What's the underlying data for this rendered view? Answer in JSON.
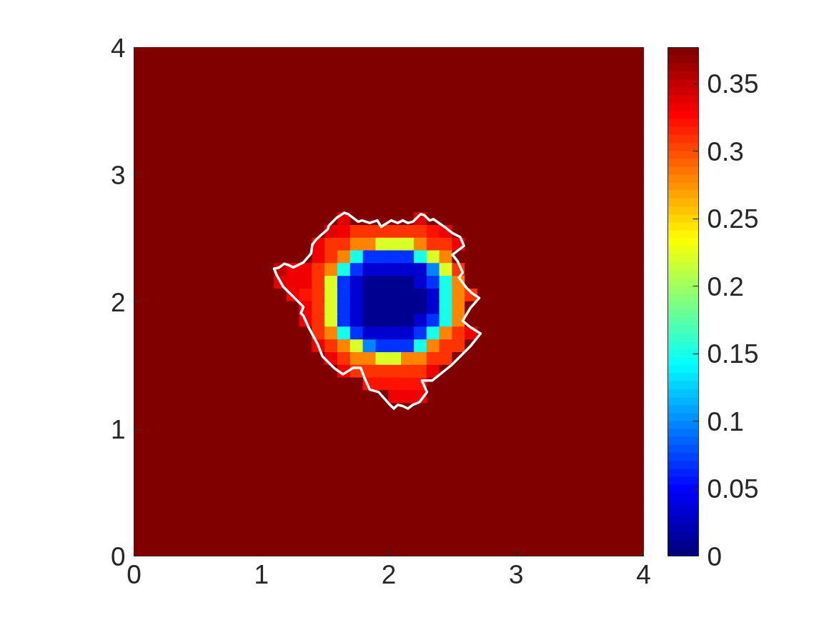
{
  "chart_data": {
    "type": "heatmap",
    "xlim": [
      0,
      4
    ],
    "ylim": [
      0,
      4
    ],
    "xticks": [
      0,
      1,
      2,
      3,
      4
    ],
    "yticks": [
      0,
      1,
      2,
      3,
      4
    ],
    "clim": [
      0,
      0.377
    ],
    "cticks": [
      0,
      0.05,
      0.1,
      0.15,
      0.2,
      0.25,
      0.3,
      0.35
    ],
    "cells": [
      [
        0.377,
        0.377,
        0.377,
        0.377,
        0.377,
        0.377,
        0.377,
        0.377,
        0.377,
        0.377,
        0.377,
        0.377,
        0.377,
        0.377,
        0.377,
        0.377,
        0.377,
        0.377,
        0.377,
        0.377,
        0.377,
        0.377,
        0.377,
        0.377,
        0.377,
        0.377,
        0.377,
        0.377,
        0.377,
        0.377,
        0.377,
        0.377,
        0.377,
        0.377,
        0.377,
        0.377,
        0.377,
        0.377,
        0.377,
        0.377
      ],
      [
        0.377,
        0.377,
        0.377,
        0.377,
        0.377,
        0.377,
        0.377,
        0.377,
        0.377,
        0.377,
        0.377,
        0.377,
        0.377,
        0.377,
        0.377,
        0.377,
        0.377,
        0.377,
        0.377,
        0.377,
        0.377,
        0.377,
        0.377,
        0.377,
        0.377,
        0.377,
        0.377,
        0.377,
        0.377,
        0.377,
        0.377,
        0.377,
        0.377,
        0.377,
        0.377,
        0.377,
        0.377,
        0.377,
        0.377,
        0.377
      ],
      [
        0.377,
        0.377,
        0.377,
        0.377,
        0.377,
        0.377,
        0.377,
        0.377,
        0.377,
        0.377,
        0.377,
        0.377,
        0.377,
        0.377,
        0.377,
        0.377,
        0.377,
        0.377,
        0.377,
        0.377,
        0.377,
        0.377,
        0.377,
        0.377,
        0.377,
        0.377,
        0.377,
        0.377,
        0.377,
        0.377,
        0.377,
        0.377,
        0.377,
        0.377,
        0.377,
        0.377,
        0.377,
        0.377,
        0.377,
        0.377
      ],
      [
        0.377,
        0.377,
        0.377,
        0.377,
        0.377,
        0.377,
        0.377,
        0.377,
        0.377,
        0.377,
        0.377,
        0.377,
        0.377,
        0.377,
        0.377,
        0.377,
        0.377,
        0.377,
        0.377,
        0.377,
        0.377,
        0.377,
        0.377,
        0.377,
        0.377,
        0.377,
        0.377,
        0.377,
        0.377,
        0.377,
        0.377,
        0.377,
        0.377,
        0.377,
        0.377,
        0.377,
        0.377,
        0.377,
        0.377,
        0.377
      ],
      [
        0.377,
        0.377,
        0.377,
        0.377,
        0.377,
        0.377,
        0.377,
        0.377,
        0.377,
        0.377,
        0.377,
        0.377,
        0.377,
        0.377,
        0.377,
        0.377,
        0.377,
        0.377,
        0.377,
        0.377,
        0.377,
        0.377,
        0.377,
        0.377,
        0.377,
        0.377,
        0.377,
        0.377,
        0.377,
        0.377,
        0.377,
        0.377,
        0.377,
        0.377,
        0.377,
        0.377,
        0.377,
        0.377,
        0.377,
        0.377
      ],
      [
        0.377,
        0.377,
        0.377,
        0.377,
        0.377,
        0.377,
        0.377,
        0.377,
        0.377,
        0.377,
        0.377,
        0.377,
        0.377,
        0.377,
        0.377,
        0.377,
        0.377,
        0.377,
        0.377,
        0.377,
        0.377,
        0.377,
        0.377,
        0.377,
        0.377,
        0.377,
        0.377,
        0.377,
        0.377,
        0.377,
        0.377,
        0.377,
        0.377,
        0.377,
        0.377,
        0.377,
        0.377,
        0.377,
        0.377,
        0.377
      ],
      [
        0.377,
        0.377,
        0.377,
        0.377,
        0.377,
        0.377,
        0.377,
        0.377,
        0.377,
        0.377,
        0.377,
        0.377,
        0.377,
        0.377,
        0.377,
        0.377,
        0.377,
        0.377,
        0.377,
        0.377,
        0.377,
        0.377,
        0.377,
        0.377,
        0.377,
        0.377,
        0.377,
        0.377,
        0.377,
        0.377,
        0.377,
        0.377,
        0.377,
        0.377,
        0.377,
        0.377,
        0.377,
        0.377,
        0.377,
        0.377
      ],
      [
        0.377,
        0.377,
        0.377,
        0.377,
        0.377,
        0.377,
        0.377,
        0.377,
        0.377,
        0.377,
        0.377,
        0.377,
        0.377,
        0.377,
        0.377,
        0.377,
        0.377,
        0.377,
        0.377,
        0.377,
        0.377,
        0.377,
        0.377,
        0.377,
        0.377,
        0.377,
        0.377,
        0.377,
        0.377,
        0.377,
        0.377,
        0.377,
        0.377,
        0.377,
        0.377,
        0.377,
        0.377,
        0.377,
        0.377,
        0.377
      ],
      [
        0.377,
        0.377,
        0.377,
        0.377,
        0.377,
        0.377,
        0.377,
        0.377,
        0.377,
        0.377,
        0.377,
        0.377,
        0.377,
        0.377,
        0.377,
        0.377,
        0.377,
        0.377,
        0.377,
        0.377,
        0.377,
        0.377,
        0.377,
        0.377,
        0.377,
        0.377,
        0.377,
        0.377,
        0.377,
        0.377,
        0.377,
        0.377,
        0.377,
        0.377,
        0.377,
        0.377,
        0.377,
        0.377,
        0.377,
        0.377
      ],
      [
        0.377,
        0.377,
        0.377,
        0.377,
        0.377,
        0.377,
        0.377,
        0.377,
        0.377,
        0.377,
        0.377,
        0.377,
        0.377,
        0.377,
        0.377,
        0.377,
        0.377,
        0.377,
        0.377,
        0.377,
        0.377,
        0.377,
        0.377,
        0.377,
        0.377,
        0.377,
        0.377,
        0.377,
        0.377,
        0.377,
        0.377,
        0.377,
        0.377,
        0.377,
        0.377,
        0.377,
        0.377,
        0.377,
        0.377,
        0.377
      ],
      [
        0.377,
        0.377,
        0.377,
        0.377,
        0.377,
        0.377,
        0.377,
        0.377,
        0.377,
        0.377,
        0.377,
        0.377,
        0.377,
        0.377,
        0.377,
        0.377,
        0.377,
        0.377,
        0.377,
        0.377,
        0.377,
        0.377,
        0.377,
        0.377,
        0.377,
        0.377,
        0.377,
        0.377,
        0.377,
        0.377,
        0.377,
        0.377,
        0.377,
        0.377,
        0.377,
        0.377,
        0.377,
        0.377,
        0.377,
        0.377
      ],
      [
        0.377,
        0.377,
        0.377,
        0.377,
        0.377,
        0.377,
        0.377,
        0.377,
        0.377,
        0.377,
        0.377,
        0.377,
        0.377,
        0.377,
        0.377,
        0.377,
        0.377,
        0.377,
        0.377,
        0.377,
        0.377,
        0.377,
        0.377,
        0.377,
        0.377,
        0.377,
        0.377,
        0.377,
        0.377,
        0.377,
        0.377,
        0.377,
        0.377,
        0.377,
        0.377,
        0.377,
        0.377,
        0.377,
        0.377,
        0.377
      ],
      [
        0.377,
        0.377,
        0.377,
        0.377,
        0.377,
        0.377,
        0.377,
        0.377,
        0.377,
        0.377,
        0.377,
        0.377,
        0.377,
        0.377,
        0.377,
        0.377,
        0.377,
        0.377,
        0.377,
        0.377,
        0.377,
        0.377,
        0.377,
        0.377,
        0.377,
        0.377,
        0.377,
        0.377,
        0.377,
        0.377,
        0.377,
        0.377,
        0.377,
        0.377,
        0.377,
        0.377,
        0.377,
        0.377,
        0.377,
        0.377
      ],
      [
        0.377,
        0.377,
        0.377,
        0.377,
        0.377,
        0.377,
        0.377,
        0.377,
        0.377,
        0.377,
        0.377,
        0.377,
        0.377,
        0.377,
        0.377,
        0.377,
        0.34,
        0.377,
        0.377,
        0.377,
        0.377,
        0.377,
        0.34,
        0.377,
        0.377,
        0.377,
        0.377,
        0.377,
        0.377,
        0.377,
        0.377,
        0.377,
        0.377,
        0.377,
        0.377,
        0.377,
        0.377,
        0.377,
        0.377,
        0.377
      ],
      [
        0.377,
        0.377,
        0.377,
        0.377,
        0.377,
        0.377,
        0.377,
        0.377,
        0.377,
        0.377,
        0.377,
        0.377,
        0.377,
        0.377,
        0.377,
        0.34,
        0.33,
        0.31,
        0.31,
        0.31,
        0.31,
        0.31,
        0.31,
        0.32,
        0.33,
        0.377,
        0.377,
        0.377,
        0.377,
        0.377,
        0.377,
        0.377,
        0.377,
        0.377,
        0.377,
        0.377,
        0.377,
        0.377,
        0.377,
        0.377
      ],
      [
        0.377,
        0.377,
        0.377,
        0.377,
        0.377,
        0.377,
        0.377,
        0.377,
        0.377,
        0.377,
        0.377,
        0.377,
        0.377,
        0.377,
        0.33,
        0.31,
        0.31,
        0.28,
        0.28,
        0.22,
        0.22,
        0.22,
        0.28,
        0.31,
        0.31,
        0.33,
        0.377,
        0.377,
        0.377,
        0.377,
        0.377,
        0.377,
        0.377,
        0.377,
        0.377,
        0.377,
        0.377,
        0.377,
        0.377,
        0.377
      ],
      [
        0.377,
        0.377,
        0.377,
        0.377,
        0.377,
        0.377,
        0.377,
        0.377,
        0.377,
        0.377,
        0.377,
        0.377,
        0.377,
        0.377,
        0.33,
        0.31,
        0.28,
        0.15,
        0.07,
        0.07,
        0.07,
        0.07,
        0.15,
        0.22,
        0.28,
        0.377,
        0.377,
        0.377,
        0.377,
        0.377,
        0.377,
        0.377,
        0.377,
        0.377,
        0.377,
        0.377,
        0.377,
        0.377,
        0.377,
        0.377
      ],
      [
        0.377,
        0.377,
        0.377,
        0.377,
        0.377,
        0.377,
        0.377,
        0.377,
        0.377,
        0.377,
        0.377,
        0.35,
        0.33,
        0.33,
        0.31,
        0.28,
        0.15,
        0.07,
        0.03,
        0.03,
        0.03,
        0.03,
        0.03,
        0.1,
        0.22,
        0.31,
        0.377,
        0.377,
        0.377,
        0.377,
        0.377,
        0.377,
        0.377,
        0.377,
        0.377,
        0.377,
        0.377,
        0.377,
        0.377,
        0.377
      ],
      [
        0.377,
        0.377,
        0.377,
        0.377,
        0.377,
        0.377,
        0.377,
        0.377,
        0.377,
        0.377,
        0.377,
        0.34,
        0.33,
        0.33,
        0.31,
        0.22,
        0.07,
        0.03,
        0.01,
        0.01,
        0.01,
        0.01,
        0.03,
        0.07,
        0.15,
        0.28,
        0.377,
        0.377,
        0.377,
        0.377,
        0.377,
        0.377,
        0.377,
        0.377,
        0.377,
        0.377,
        0.377,
        0.377,
        0.377,
        0.377
      ],
      [
        0.377,
        0.377,
        0.377,
        0.377,
        0.377,
        0.377,
        0.377,
        0.377,
        0.377,
        0.377,
        0.377,
        0.377,
        0.33,
        0.32,
        0.31,
        0.22,
        0.07,
        0.03,
        0.01,
        0.01,
        0.01,
        0.01,
        0.01,
        0.03,
        0.15,
        0.28,
        0.31,
        0.377,
        0.377,
        0.377,
        0.377,
        0.377,
        0.377,
        0.377,
        0.377,
        0.377,
        0.377,
        0.377,
        0.377,
        0.377
      ],
      [
        0.377,
        0.377,
        0.377,
        0.377,
        0.377,
        0.377,
        0.377,
        0.377,
        0.377,
        0.377,
        0.377,
        0.377,
        0.377,
        0.33,
        0.31,
        0.22,
        0.07,
        0.03,
        0.01,
        0.01,
        0.01,
        0.01,
        0.01,
        0.03,
        0.15,
        0.28,
        0.377,
        0.377,
        0.377,
        0.377,
        0.377,
        0.377,
        0.377,
        0.377,
        0.377,
        0.377,
        0.377,
        0.377,
        0.377,
        0.377
      ],
      [
        0.377,
        0.377,
        0.377,
        0.377,
        0.377,
        0.377,
        0.377,
        0.377,
        0.377,
        0.377,
        0.377,
        0.377,
        0.377,
        0.33,
        0.31,
        0.22,
        0.07,
        0.03,
        0.01,
        0.01,
        0.01,
        0.01,
        0.03,
        0.07,
        0.15,
        0.28,
        0.377,
        0.377,
        0.377,
        0.377,
        0.377,
        0.377,
        0.377,
        0.377,
        0.377,
        0.377,
        0.377,
        0.377,
        0.377,
        0.377
      ],
      [
        0.377,
        0.377,
        0.377,
        0.377,
        0.377,
        0.377,
        0.377,
        0.377,
        0.377,
        0.377,
        0.377,
        0.377,
        0.377,
        0.377,
        0.31,
        0.28,
        0.15,
        0.07,
        0.03,
        0.03,
        0.03,
        0.03,
        0.07,
        0.15,
        0.28,
        0.31,
        0.33,
        0.377,
        0.377,
        0.377,
        0.377,
        0.377,
        0.377,
        0.377,
        0.377,
        0.377,
        0.377,
        0.377,
        0.377,
        0.377
      ],
      [
        0.377,
        0.377,
        0.377,
        0.377,
        0.377,
        0.377,
        0.377,
        0.377,
        0.377,
        0.377,
        0.377,
        0.377,
        0.377,
        0.377,
        0.33,
        0.31,
        0.28,
        0.22,
        0.1,
        0.07,
        0.07,
        0.07,
        0.15,
        0.28,
        0.31,
        0.31,
        0.377,
        0.377,
        0.377,
        0.377,
        0.377,
        0.377,
        0.377,
        0.377,
        0.377,
        0.377,
        0.377,
        0.377,
        0.377,
        0.377
      ],
      [
        0.377,
        0.377,
        0.377,
        0.377,
        0.377,
        0.377,
        0.377,
        0.377,
        0.377,
        0.377,
        0.377,
        0.377,
        0.377,
        0.377,
        0.377,
        0.33,
        0.31,
        0.28,
        0.28,
        0.22,
        0.22,
        0.28,
        0.28,
        0.31,
        0.31,
        0.377,
        0.377,
        0.377,
        0.377,
        0.377,
        0.377,
        0.377,
        0.377,
        0.377,
        0.377,
        0.377,
        0.377,
        0.377,
        0.377,
        0.377
      ],
      [
        0.377,
        0.377,
        0.377,
        0.377,
        0.377,
        0.377,
        0.377,
        0.377,
        0.377,
        0.377,
        0.377,
        0.377,
        0.377,
        0.377,
        0.377,
        0.377,
        0.33,
        0.31,
        0.31,
        0.31,
        0.31,
        0.31,
        0.31,
        0.33,
        0.377,
        0.377,
        0.377,
        0.377,
        0.377,
        0.377,
        0.377,
        0.377,
        0.377,
        0.377,
        0.377,
        0.377,
        0.377,
        0.377,
        0.377,
        0.377
      ],
      [
        0.377,
        0.377,
        0.377,
        0.377,
        0.377,
        0.377,
        0.377,
        0.377,
        0.377,
        0.377,
        0.377,
        0.377,
        0.377,
        0.377,
        0.377,
        0.377,
        0.377,
        0.377,
        0.32,
        0.32,
        0.32,
        0.32,
        0.32,
        0.377,
        0.377,
        0.377,
        0.377,
        0.377,
        0.377,
        0.377,
        0.377,
        0.377,
        0.377,
        0.377,
        0.377,
        0.377,
        0.377,
        0.377,
        0.377,
        0.377
      ],
      [
        0.377,
        0.377,
        0.377,
        0.377,
        0.377,
        0.377,
        0.377,
        0.377,
        0.377,
        0.377,
        0.377,
        0.377,
        0.377,
        0.377,
        0.377,
        0.377,
        0.377,
        0.377,
        0.377,
        0.377,
        0.33,
        0.33,
        0.33,
        0.377,
        0.377,
        0.377,
        0.377,
        0.377,
        0.377,
        0.377,
        0.377,
        0.377,
        0.377,
        0.377,
        0.377,
        0.377,
        0.377,
        0.377,
        0.377,
        0.377
      ],
      [
        0.377,
        0.377,
        0.377,
        0.377,
        0.377,
        0.377,
        0.377,
        0.377,
        0.377,
        0.377,
        0.377,
        0.377,
        0.377,
        0.377,
        0.377,
        0.377,
        0.377,
        0.377,
        0.377,
        0.377,
        0.377,
        0.377,
        0.377,
        0.377,
        0.377,
        0.377,
        0.377,
        0.377,
        0.377,
        0.377,
        0.377,
        0.377,
        0.377,
        0.377,
        0.377,
        0.377,
        0.377,
        0.377,
        0.377,
        0.377
      ],
      [
        0.377,
        0.377,
        0.377,
        0.377,
        0.377,
        0.377,
        0.377,
        0.377,
        0.377,
        0.377,
        0.377,
        0.377,
        0.377,
        0.377,
        0.377,
        0.377,
        0.377,
        0.377,
        0.377,
        0.377,
        0.377,
        0.377,
        0.377,
        0.377,
        0.377,
        0.377,
        0.377,
        0.377,
        0.377,
        0.377,
        0.377,
        0.377,
        0.377,
        0.377,
        0.377,
        0.377,
        0.377,
        0.377,
        0.377,
        0.377
      ],
      [
        0.377,
        0.377,
        0.377,
        0.377,
        0.377,
        0.377,
        0.377,
        0.377,
        0.377,
        0.377,
        0.377,
        0.377,
        0.377,
        0.377,
        0.377,
        0.377,
        0.377,
        0.377,
        0.377,
        0.377,
        0.377,
        0.377,
        0.377,
        0.377,
        0.377,
        0.377,
        0.377,
        0.377,
        0.377,
        0.377,
        0.377,
        0.377,
        0.377,
        0.377,
        0.377,
        0.377,
        0.377,
        0.377,
        0.377,
        0.377
      ],
      [
        0.377,
        0.377,
        0.377,
        0.377,
        0.377,
        0.377,
        0.377,
        0.377,
        0.377,
        0.377,
        0.377,
        0.377,
        0.377,
        0.377,
        0.377,
        0.377,
        0.377,
        0.377,
        0.377,
        0.377,
        0.377,
        0.377,
        0.377,
        0.377,
        0.377,
        0.377,
        0.377,
        0.377,
        0.377,
        0.377,
        0.377,
        0.377,
        0.377,
        0.377,
        0.377,
        0.377,
        0.377,
        0.377,
        0.377,
        0.377
      ],
      [
        0.377,
        0.377,
        0.377,
        0.377,
        0.377,
        0.377,
        0.377,
        0.377,
        0.377,
        0.377,
        0.377,
        0.377,
        0.377,
        0.377,
        0.377,
        0.377,
        0.377,
        0.377,
        0.377,
        0.377,
        0.377,
        0.377,
        0.377,
        0.377,
        0.377,
        0.377,
        0.377,
        0.377,
        0.377,
        0.377,
        0.377,
        0.377,
        0.377,
        0.377,
        0.377,
        0.377,
        0.377,
        0.377,
        0.377,
        0.377
      ],
      [
        0.377,
        0.377,
        0.377,
        0.377,
        0.377,
        0.377,
        0.377,
        0.377,
        0.377,
        0.377,
        0.377,
        0.377,
        0.377,
        0.377,
        0.377,
        0.377,
        0.377,
        0.377,
        0.377,
        0.377,
        0.377,
        0.377,
        0.377,
        0.377,
        0.377,
        0.377,
        0.377,
        0.377,
        0.377,
        0.377,
        0.377,
        0.377,
        0.377,
        0.377,
        0.377,
        0.377,
        0.377,
        0.377,
        0.377,
        0.377
      ],
      [
        0.377,
        0.377,
        0.377,
        0.377,
        0.377,
        0.377,
        0.377,
        0.377,
        0.377,
        0.377,
        0.377,
        0.377,
        0.377,
        0.377,
        0.377,
        0.377,
        0.377,
        0.377,
        0.377,
        0.377,
        0.377,
        0.377,
        0.377,
        0.377,
        0.377,
        0.377,
        0.377,
        0.377,
        0.377,
        0.377,
        0.377,
        0.377,
        0.377,
        0.377,
        0.377,
        0.377,
        0.377,
        0.377,
        0.377,
        0.377
      ],
      [
        0.377,
        0.377,
        0.377,
        0.377,
        0.377,
        0.377,
        0.377,
        0.377,
        0.377,
        0.377,
        0.377,
        0.377,
        0.377,
        0.377,
        0.377,
        0.377,
        0.377,
        0.377,
        0.377,
        0.377,
        0.377,
        0.377,
        0.377,
        0.377,
        0.377,
        0.377,
        0.377,
        0.377,
        0.377,
        0.377,
        0.377,
        0.377,
        0.377,
        0.377,
        0.377,
        0.377,
        0.377,
        0.377,
        0.377,
        0.377
      ],
      [
        0.377,
        0.377,
        0.377,
        0.377,
        0.377,
        0.377,
        0.377,
        0.377,
        0.377,
        0.377,
        0.377,
        0.377,
        0.377,
        0.377,
        0.377,
        0.377,
        0.377,
        0.377,
        0.377,
        0.377,
        0.377,
        0.377,
        0.377,
        0.377,
        0.377,
        0.377,
        0.377,
        0.377,
        0.377,
        0.377,
        0.377,
        0.377,
        0.377,
        0.377,
        0.377,
        0.377,
        0.377,
        0.377,
        0.377,
        0.377
      ],
      [
        0.377,
        0.377,
        0.377,
        0.377,
        0.377,
        0.377,
        0.377,
        0.377,
        0.377,
        0.377,
        0.377,
        0.377,
        0.377,
        0.377,
        0.377,
        0.377,
        0.377,
        0.377,
        0.377,
        0.377,
        0.377,
        0.377,
        0.377,
        0.377,
        0.377,
        0.377,
        0.377,
        0.377,
        0.377,
        0.377,
        0.377,
        0.377,
        0.377,
        0.377,
        0.377,
        0.377,
        0.377,
        0.377,
        0.377,
        0.377
      ],
      [
        0.377,
        0.377,
        0.377,
        0.377,
        0.377,
        0.377,
        0.377,
        0.377,
        0.377,
        0.377,
        0.377,
        0.377,
        0.377,
        0.377,
        0.377,
        0.377,
        0.377,
        0.377,
        0.377,
        0.377,
        0.377,
        0.377,
        0.377,
        0.377,
        0.377,
        0.377,
        0.377,
        0.377,
        0.377,
        0.377,
        0.377,
        0.377,
        0.377,
        0.377,
        0.377,
        0.377,
        0.377,
        0.377,
        0.377,
        0.377
      ],
      [
        0.377,
        0.377,
        0.377,
        0.377,
        0.377,
        0.377,
        0.377,
        0.377,
        0.377,
        0.377,
        0.377,
        0.377,
        0.377,
        0.377,
        0.377,
        0.377,
        0.377,
        0.377,
        0.377,
        0.377,
        0.377,
        0.377,
        0.377,
        0.377,
        0.377,
        0.377,
        0.377,
        0.377,
        0.377,
        0.377,
        0.377,
        0.377,
        0.377,
        0.377,
        0.377,
        0.377,
        0.377,
        0.377,
        0.377,
        0.377
      ]
    ],
    "series": [
      {
        "type": "line",
        "color": "#ffffff",
        "x": [
          1.1,
          1.14,
          1.18,
          1.21,
          1.25,
          1.33,
          1.39,
          1.4,
          1.43,
          1.52,
          1.53,
          1.59,
          1.65,
          1.68,
          1.76,
          1.79,
          1.85,
          1.91,
          1.94,
          2.02,
          2.07,
          2.11,
          2.15,
          2.19,
          2.22,
          2.25,
          2.28,
          2.32,
          2.35,
          2.45,
          2.5,
          2.56,
          2.59,
          2.5,
          2.54,
          2.58,
          2.55,
          2.61,
          2.65,
          2.71,
          2.64,
          2.58,
          2.64,
          2.72
        ],
        "values": [
          2.26,
          2.27,
          2.3,
          2.29,
          2.27,
          2.31,
          2.38,
          2.45,
          2.49,
          2.57,
          2.6,
          2.66,
          2.7,
          2.69,
          2.63,
          2.64,
          2.62,
          2.64,
          2.59,
          2.64,
          2.62,
          2.64,
          2.62,
          2.63,
          2.66,
          2.69,
          2.68,
          2.64,
          2.65,
          2.58,
          2.54,
          2.51,
          2.44,
          2.37,
          2.32,
          2.23,
          2.19,
          2.11,
          2.07,
          2.03,
          1.95,
          1.85,
          1.8,
          1.75
        ]
      },
      {
        "type": "line",
        "color": "#ffffff",
        "x": [
          1.1,
          1.12,
          1.17,
          1.25,
          1.33,
          1.31,
          1.33,
          1.37,
          1.44,
          1.48,
          1.57,
          1.64,
          1.72,
          1.78,
          1.81,
          1.85,
          1.92,
          2.0,
          2.04,
          2.07,
          2.11,
          2.15,
          2.19,
          2.24,
          2.3,
          2.26,
          2.34,
          2.49,
          2.64,
          2.72
        ],
        "values": [
          2.26,
          2.21,
          2.12,
          2.04,
          1.96,
          1.91,
          1.89,
          1.8,
          1.67,
          1.57,
          1.48,
          1.43,
          1.48,
          1.48,
          1.4,
          1.31,
          1.29,
          1.2,
          1.16,
          1.19,
          1.18,
          1.16,
          1.19,
          1.21,
          1.29,
          1.38,
          1.38,
          1.5,
          1.65,
          1.75
        ]
      }
    ]
  }
}
